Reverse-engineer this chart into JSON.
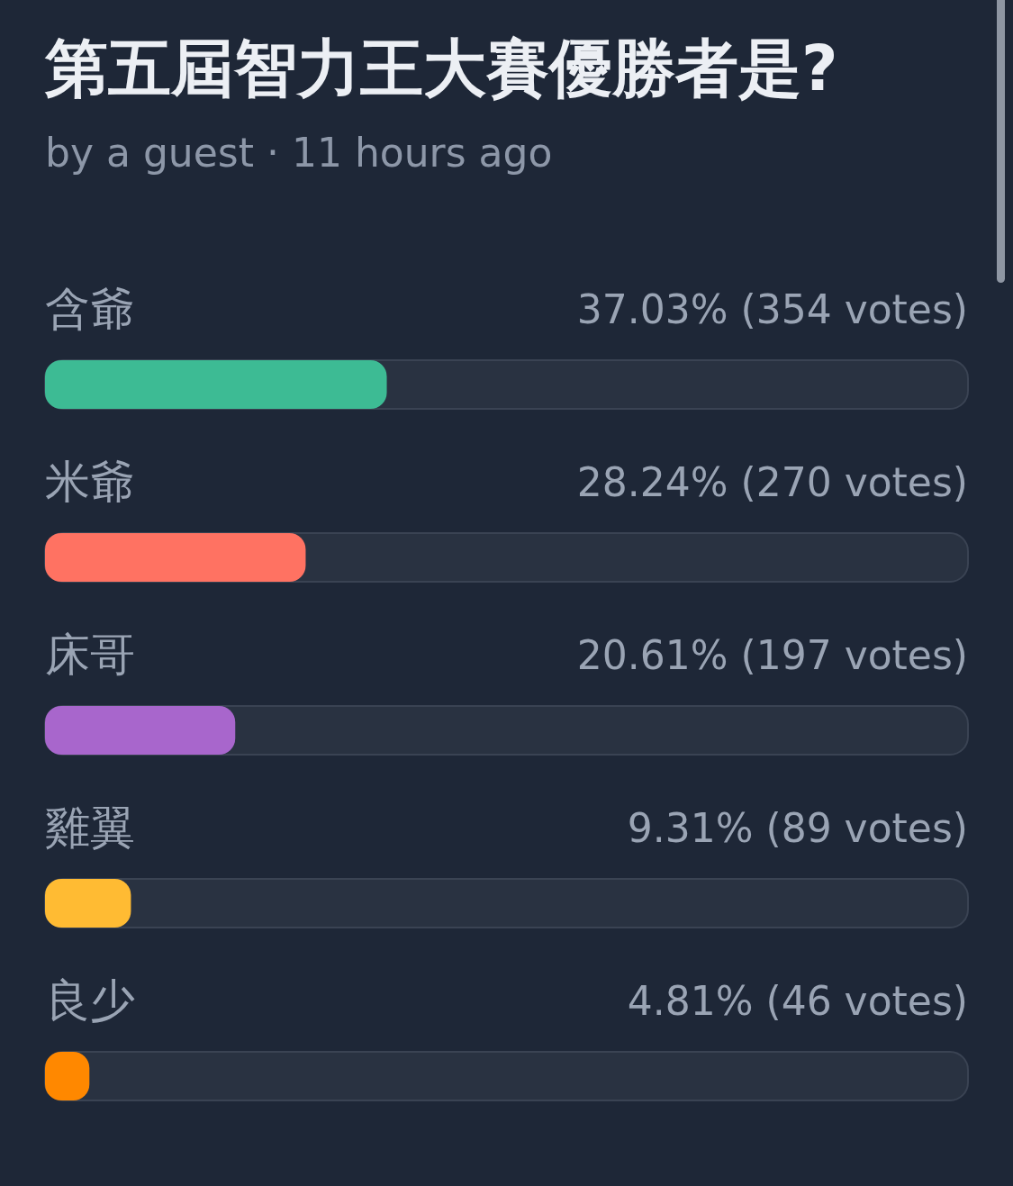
{
  "chart_data": {
    "type": "bar",
    "orientation": "horizontal",
    "title": "第五屆智力王大賽優勝者是?",
    "subtitle": "by a guest · 11 hours ago",
    "categories": [
      "含爺",
      "米爺",
      "床哥",
      "雞翼",
      "良少"
    ],
    "values": [
      37.03,
      28.24,
      20.61,
      9.31,
      4.81
    ],
    "colors": [
      "#3dbb94",
      "#ff7262",
      "#a866cc",
      "#ffbb33",
      "#ff8800"
    ],
    "value_labels": [
      "37.03% (354 votes)",
      "28.24% (270 votes)",
      "20.61% (197 votes)",
      "9.31% (89 votes)",
      "4.81% (46 votes)"
    ],
    "xlim": [
      0,
      100
    ],
    "tick_labels": "y"
  }
}
